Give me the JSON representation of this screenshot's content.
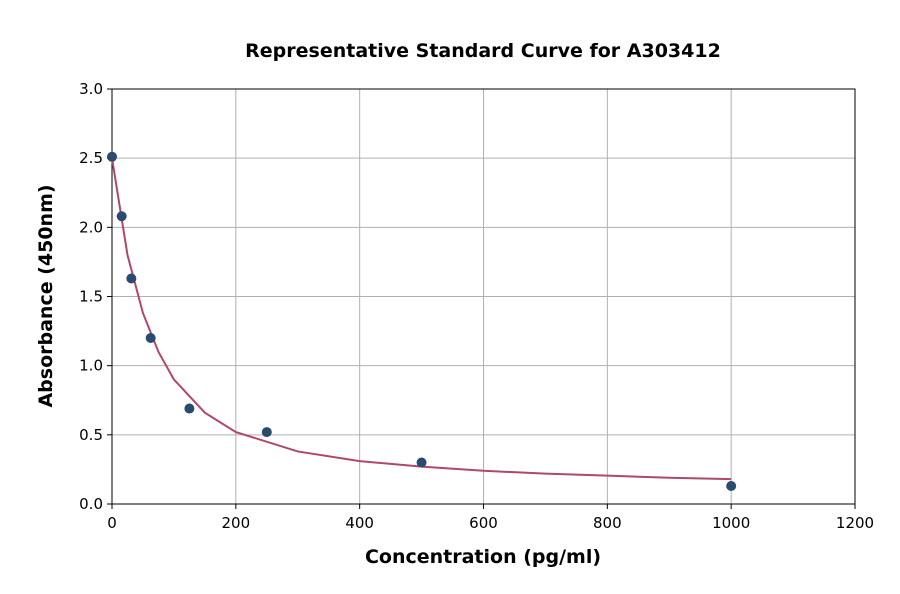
{
  "chart_data": {
    "type": "scatter",
    "title": "Representative Standard Curve for A303412",
    "xlabel": "Concentration (pg/ml)",
    "ylabel": "Absorbance (450nm)",
    "xlim": [
      0,
      1200
    ],
    "xticks": [
      0,
      200,
      400,
      600,
      800,
      1000,
      1200
    ],
    "ylim": [
      0,
      3.0
    ],
    "yticks": [
      {
        "value": 0,
        "label": "0.0"
      },
      {
        "value": 0.5,
        "label": "0.5"
      },
      {
        "value": 1.0,
        "label": "1.0"
      },
      {
        "value": 1.5,
        "label": "1.5"
      },
      {
        "value": 2.0,
        "label": "2.0"
      },
      {
        "value": 2.5,
        "label": "2.5"
      },
      {
        "value": 3.0,
        "label": "3.0"
      }
    ],
    "grid": true,
    "series": [
      {
        "type": "scatter",
        "color": "#2b4a6f",
        "x": [
          0,
          15.625,
          31.25,
          62.5,
          125,
          250,
          500,
          1000
        ],
        "values": [
          2.51,
          2.08,
          1.63,
          1.2,
          0.69,
          0.52,
          0.3,
          0.13
        ]
      },
      {
        "type": "line",
        "color": "#b0476d",
        "x": [
          0,
          25,
          50,
          75,
          100,
          150,
          200,
          300,
          400,
          500,
          600,
          700,
          800,
          900,
          1000
        ],
        "values": [
          2.5,
          1.8,
          1.38,
          1.1,
          0.9,
          0.66,
          0.52,
          0.38,
          0.31,
          0.27,
          0.24,
          0.22,
          0.205,
          0.19,
          0.18
        ]
      }
    ]
  }
}
